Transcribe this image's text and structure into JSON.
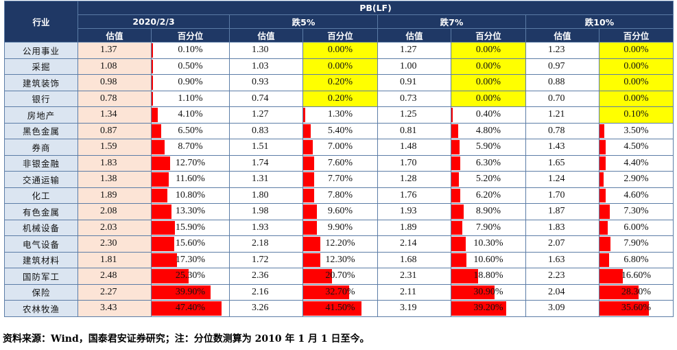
{
  "chart_data": {
    "type": "table",
    "title": "PB(LF)",
    "row_header": "行业",
    "groups": [
      "2020/2/3",
      "跌5%",
      "跌7%",
      "跌10%"
    ],
    "subheaders": [
      "估值",
      "百分位"
    ],
    "percentile_scale_max": 47.4,
    "rows": [
      {
        "industry": "公用事业",
        "values": [
          1.37,
          1.3,
          1.27,
          1.23
        ],
        "percentiles": [
          "0.10%",
          "0.00%",
          "0.00%",
          "0.00%"
        ],
        "highlight": [
          false,
          true,
          true,
          true
        ]
      },
      {
        "industry": "采掘",
        "values": [
          1.08,
          1.03,
          1.0,
          0.97
        ],
        "percentiles": [
          "0.50%",
          "0.00%",
          "0.00%",
          "0.00%"
        ],
        "highlight": [
          false,
          true,
          true,
          true
        ]
      },
      {
        "industry": "建筑装饰",
        "values": [
          0.98,
          0.93,
          0.91,
          0.88
        ],
        "percentiles": [
          "0.90%",
          "0.20%",
          "0.00%",
          "0.00%"
        ],
        "highlight": [
          false,
          true,
          true,
          true
        ]
      },
      {
        "industry": "银行",
        "values": [
          0.78,
          0.74,
          0.73,
          0.7
        ],
        "percentiles": [
          "1.10%",
          "0.20%",
          "0.00%",
          "0.00%"
        ],
        "highlight": [
          false,
          true,
          true,
          true
        ]
      },
      {
        "industry": "房地产",
        "values": [
          1.34,
          1.27,
          1.25,
          1.21
        ],
        "percentiles": [
          "4.10%",
          "1.30%",
          "0.40%",
          "0.10%"
        ],
        "highlight": [
          false,
          false,
          false,
          true
        ]
      },
      {
        "industry": "黑色金属",
        "values": [
          0.87,
          0.83,
          0.81,
          0.78
        ],
        "percentiles": [
          "6.50%",
          "5.40%",
          "4.80%",
          "3.50%"
        ],
        "highlight": [
          false,
          false,
          false,
          false
        ]
      },
      {
        "industry": "券商",
        "values": [
          1.59,
          1.51,
          1.48,
          1.43
        ],
        "percentiles": [
          "8.70%",
          "7.00%",
          "5.90%",
          "4.50%"
        ],
        "highlight": [
          false,
          false,
          false,
          false
        ]
      },
      {
        "industry": "非银金融",
        "values": [
          1.83,
          1.74,
          1.7,
          1.65
        ],
        "percentiles": [
          "12.70%",
          "7.60%",
          "6.30%",
          "4.40%"
        ],
        "highlight": [
          false,
          false,
          false,
          false
        ]
      },
      {
        "industry": "交通运输",
        "values": [
          1.38,
          1.31,
          1.28,
          1.24
        ],
        "percentiles": [
          "11.60%",
          "7.70%",
          "5.20%",
          "2.90%"
        ],
        "highlight": [
          false,
          false,
          false,
          false
        ]
      },
      {
        "industry": "化工",
        "values": [
          1.89,
          1.8,
          1.76,
          1.7
        ],
        "percentiles": [
          "10.80%",
          "7.80%",
          "6.20%",
          "4.60%"
        ],
        "highlight": [
          false,
          false,
          false,
          false
        ]
      },
      {
        "industry": "有色金属",
        "values": [
          2.08,
          1.98,
          1.93,
          1.87
        ],
        "percentiles": [
          "13.30%",
          "9.60%",
          "8.90%",
          "7.30%"
        ],
        "highlight": [
          false,
          false,
          false,
          false
        ]
      },
      {
        "industry": "机械设备",
        "values": [
          2.03,
          1.93,
          1.89,
          1.83
        ],
        "percentiles": [
          "15.90%",
          "9.90%",
          "7.90%",
          "6.00%"
        ],
        "highlight": [
          false,
          false,
          false,
          false
        ]
      },
      {
        "industry": "电气设备",
        "values": [
          2.3,
          2.18,
          2.14,
          2.07
        ],
        "percentiles": [
          "15.60%",
          "12.20%",
          "10.30%",
          "7.90%"
        ],
        "highlight": [
          false,
          false,
          false,
          false
        ]
      },
      {
        "industry": "建筑材料",
        "values": [
          1.81,
          1.72,
          1.68,
          1.63
        ],
        "percentiles": [
          "17.30%",
          "12.30%",
          "10.60%",
          "6.80%"
        ],
        "highlight": [
          false,
          false,
          false,
          false
        ]
      },
      {
        "industry": "国防军工",
        "values": [
          2.48,
          2.36,
          2.31,
          2.23
        ],
        "percentiles": [
          "25.30%",
          "20.70%",
          "18.80%",
          "16.60%"
        ],
        "highlight": [
          false,
          false,
          false,
          false
        ]
      },
      {
        "industry": "保险",
        "values": [
          2.27,
          2.16,
          2.11,
          2.04
        ],
        "percentiles": [
          "39.90%",
          "32.70%",
          "30.90%",
          "28.30%"
        ],
        "highlight": [
          false,
          false,
          false,
          false
        ]
      },
      {
        "industry": "农林牧渔",
        "values": [
          3.43,
          3.26,
          3.19,
          3.09
        ],
        "percentiles": [
          "47.40%",
          "41.50%",
          "39.20%",
          "35.60%"
        ],
        "highlight": [
          false,
          false,
          false,
          false
        ]
      }
    ]
  },
  "source_note": "资料来源：Wind，国泰君安证券研究；注：分位数测算为 2010 年 1 月 1 日至今。",
  "colors": {
    "header_bg": "#1f3865",
    "industry_bg": "#dbe5f1",
    "current_value_bg": "#fce4d6",
    "bar": "#ff0000",
    "zero_highlight": "#ffff00"
  }
}
